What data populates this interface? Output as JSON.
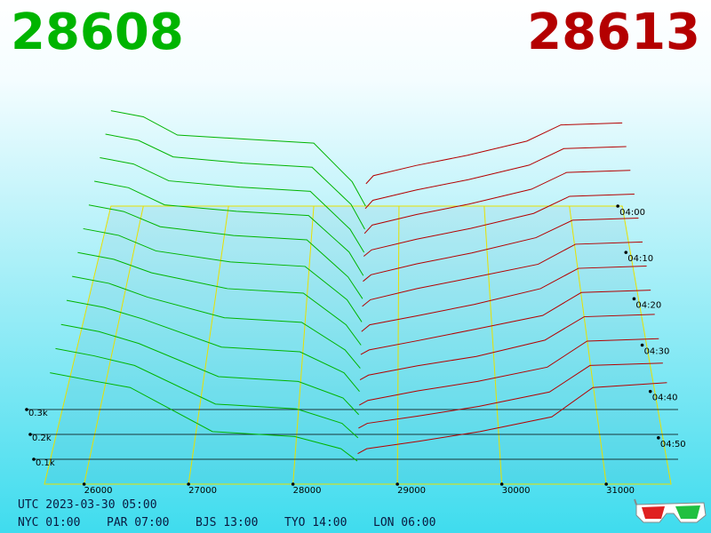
{
  "chart_data": {
    "type": "depth3d",
    "bid": 28608,
    "ask": 28613,
    "bid_color": "#00b400",
    "ask_color": "#b40000",
    "xlim": [
      25620,
      31620
    ],
    "xticks": [
      26000,
      27000,
      28000,
      29000,
      30000,
      31000
    ],
    "ylim": [
      0,
      0.5
    ],
    "yticks": [
      {
        "value": 0.1,
        "label": "0.1k"
      },
      {
        "value": 0.2,
        "label": "0.2k"
      },
      {
        "value": 0.3,
        "label": "0.3k"
      }
    ],
    "zlim": [
      "04:00",
      "05:00"
    ],
    "zticks": [
      "04:00",
      "04:10",
      "04:20",
      "04:30",
      "04:40",
      "04:50"
    ],
    "bid_prices": [
      25620,
      26000,
      26400,
      27200,
      28000,
      28450,
      28608
    ],
    "ask_prices": [
      28613,
      28700,
      29200,
      29800,
      30500,
      30900,
      31620
    ],
    "snapshots": [
      {
        "time": "04:00",
        "bids": [
          0.47,
          0.44,
          0.35,
          0.33,
          0.31,
          0.12,
          0
        ],
        "asks": [
          0.11,
          0.15,
          0.2,
          0.25,
          0.32,
          0.4,
          0.41
        ]
      },
      {
        "time": "04:05",
        "bids": [
          0.46,
          0.43,
          0.35,
          0.32,
          0.3,
          0.12,
          0
        ],
        "asks": [
          0.1,
          0.14,
          0.19,
          0.24,
          0.31,
          0.39,
          0.4
        ]
      },
      {
        "time": "04:10",
        "bids": [
          0.45,
          0.42,
          0.34,
          0.31,
          0.29,
          0.11,
          0
        ],
        "asks": [
          0.09,
          0.13,
          0.18,
          0.23,
          0.3,
          0.38,
          0.39
        ]
      },
      {
        "time": "04:15",
        "bids": [
          0.44,
          0.41,
          0.33,
          0.3,
          0.28,
          0.11,
          0
        ],
        "asks": [
          0.09,
          0.12,
          0.17,
          0.22,
          0.29,
          0.37,
          0.38
        ]
      },
      {
        "time": "04:20",
        "bids": [
          0.43,
          0.4,
          0.33,
          0.29,
          0.27,
          0.1,
          0
        ],
        "asks": [
          0.08,
          0.11,
          0.16,
          0.21,
          0.28,
          0.36,
          0.37
        ]
      },
      {
        "time": "04:25",
        "bids": [
          0.42,
          0.39,
          0.32,
          0.27,
          0.25,
          0.1,
          0
        ],
        "asks": [
          0.07,
          0.1,
          0.15,
          0.2,
          0.26,
          0.35,
          0.36
        ]
      },
      {
        "time": "04:30",
        "bids": [
          0.41,
          0.38,
          0.32,
          0.25,
          0.23,
          0.09,
          0
        ],
        "asks": [
          0.06,
          0.09,
          0.13,
          0.18,
          0.25,
          0.34,
          0.35
        ]
      },
      {
        "time": "04:35",
        "bids": [
          0.4,
          0.37,
          0.31,
          0.22,
          0.2,
          0.08,
          0
        ],
        "asks": [
          0.06,
          0.08,
          0.12,
          0.17,
          0.23,
          0.33,
          0.34
        ]
      },
      {
        "time": "04:40",
        "bids": [
          0.39,
          0.36,
          0.31,
          0.19,
          0.17,
          0.08,
          0
        ],
        "asks": [
          0.05,
          0.07,
          0.11,
          0.15,
          0.22,
          0.32,
          0.33
        ]
      },
      {
        "time": "04:45",
        "bids": [
          0.38,
          0.35,
          0.3,
          0.16,
          0.14,
          0.07,
          0
        ],
        "asks": [
          0.04,
          0.06,
          0.1,
          0.14,
          0.2,
          0.31,
          0.32
        ]
      },
      {
        "time": "04:50",
        "bids": [
          0.37,
          0.34,
          0.3,
          0.14,
          0.12,
          0.06,
          0
        ],
        "asks": [
          0.04,
          0.06,
          0.09,
          0.13,
          0.19,
          0.3,
          0.31
        ]
      },
      {
        "time": "04:55",
        "bids": [
          0.36,
          0.33,
          0.3,
          0.12,
          0.1,
          0.05,
          0
        ],
        "asks": [
          0.03,
          0.05,
          0.08,
          0.12,
          0.18,
          0.3,
          0.32
        ]
      }
    ],
    "clock": {
      "utc": "UTC 2023-03-30 05:00",
      "zones": [
        "NYC 01:00",
        "PAR 07:00",
        "BJS 13:00",
        "TYO 14:00",
        "LON 06:00"
      ]
    }
  }
}
